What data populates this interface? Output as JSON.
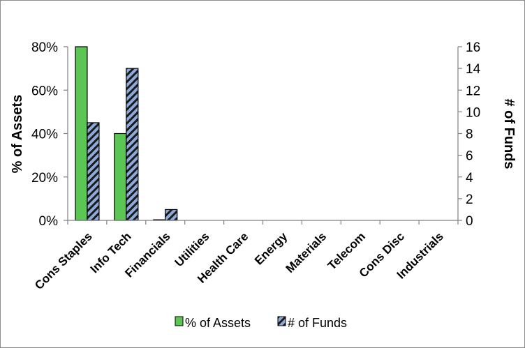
{
  "chart_data": {
    "type": "bar",
    "title": "",
    "xlabel": "",
    "categories": [
      "Cons Staples",
      "Info Tech",
      "Financials",
      "Utilities",
      "Health Care",
      "Energy",
      "Materials",
      "Telecom",
      "Cons Disc",
      "Industrials"
    ],
    "series": [
      {
        "name": "% of Assets",
        "axis": "left",
        "color": "#5bc654",
        "values": [
          0.8,
          0.4,
          0.003,
          0,
          0,
          0,
          0,
          0,
          0,
          0
        ]
      },
      {
        "name": "# of Funds",
        "axis": "right",
        "color": "#8eaadb",
        "pattern": "diagonal-stripes",
        "values": [
          9,
          14,
          1,
          0,
          0,
          0,
          0,
          0,
          0,
          0
        ]
      }
    ],
    "y_left": {
      "label": "% of Assets",
      "ylim": [
        0,
        0.8
      ],
      "ticks": [
        "0%",
        "20%",
        "40%",
        "60%",
        "80%"
      ]
    },
    "y_right": {
      "label": "# of Funds",
      "ylim": [
        0,
        16
      ],
      "ticks": [
        "0",
        "2",
        "4",
        "6",
        "8",
        "10",
        "12",
        "14",
        "16"
      ]
    },
    "grid": false,
    "legend": {
      "position": "bottom",
      "entries": [
        "% of Assets",
        "# of Funds"
      ]
    }
  }
}
